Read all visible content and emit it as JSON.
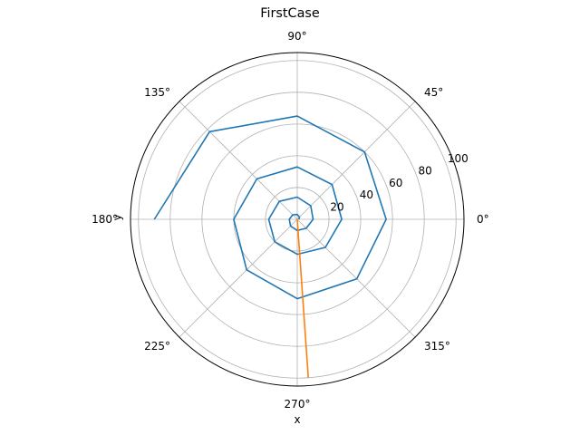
{
  "chart_data": {
    "type": "line",
    "projection": "polar",
    "title": "FirstCase",
    "xlabel": "x",
    "ylabel": "y",
    "theta_tick_labels": [
      "0°",
      "45°",
      "90°",
      "135°",
      "180°",
      "225°",
      "270°",
      "315°"
    ],
    "r_tick_values": [
      20,
      40,
      60,
      80,
      100
    ],
    "r_tick_labels": [
      "20",
      "40",
      "60",
      "80",
      "100"
    ],
    "rlim": [
      0,
      105
    ],
    "r_label_angle_deg": 22.5,
    "grid": true,
    "series": [
      {
        "color": "#1f77b4",
        "theta_deg": [
          0,
          45,
          90,
          135,
          180,
          225,
          270,
          315,
          0,
          45,
          90,
          135,
          180,
          225,
          270,
          315,
          0,
          45,
          90,
          135,
          180,
          225,
          270,
          315,
          0,
          45,
          90,
          135,
          180
        ],
        "r": [
          1,
          2,
          3,
          4,
          5,
          6,
          7,
          8,
          10,
          12,
          14,
          16,
          18,
          20,
          22,
          25,
          28,
          31,
          33,
          36,
          40,
          45,
          50,
          53,
          56,
          60,
          65,
          78,
          90
        ]
      },
      {
        "color": "#ff7f0e",
        "theta_deg": [
          0,
          274
        ],
        "r": [
          0,
          100
        ]
      }
    ]
  }
}
